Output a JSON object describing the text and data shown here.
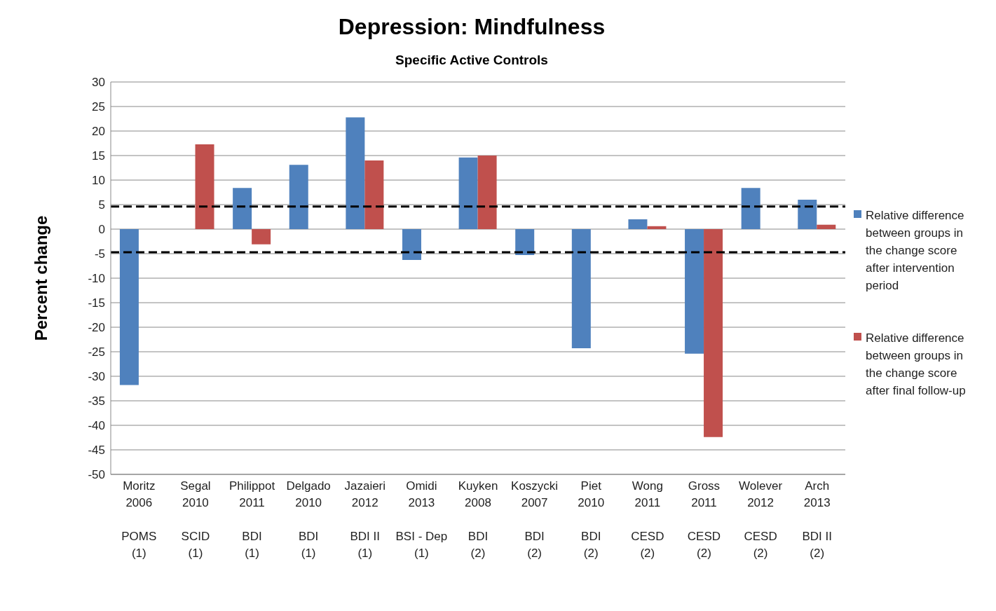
{
  "chart_data": {
    "type": "bar",
    "title": "Depression: Mindfulness",
    "subtitle": "Specific Active Controls",
    "ylabel": "Percent change",
    "categories": [
      "Moritz\n2006\n\nPOMS\n(1)",
      "Segal\n2010\n\nSCID\n(1)",
      "Philippot\n2011\n\nBDI\n(1)",
      "Delgado\n2010\n\nBDI\n(1)",
      "Jazaieri\n2012\n\nBDI II\n(1)",
      "Omidi\n2013\n\nBSI - Dep\n(1)",
      "Kuyken\n2008\n\nBDI\n(2)",
      "Koszycki\n2007\n\nBDI\n(2)",
      "Piet\n2010\n\nBDI\n(2)",
      "Wong\n2011\n\nCESD\n(2)",
      "Gross\n2011\n\nCESD\n(2)",
      "Wolever\n2012\n\nCESD\n(2)",
      "Arch\n2013\n\nBDI II\n(2)"
    ],
    "series": [
      {
        "name": "Relative difference between groups in the change score after intervention period",
        "color": "#4f81bd",
        "values": [
          -31.8,
          null,
          8.4,
          13.1,
          22.8,
          -6.3,
          14.6,
          -5.3,
          -24.3,
          2.0,
          -25.4,
          8.4,
          6.0
        ]
      },
      {
        "name": "Relative difference between groups in the change score after final follow-up",
        "color": "#c0504d",
        "values": [
          null,
          17.3,
          -3.1,
          null,
          14,
          null,
          15,
          null,
          null,
          0.6,
          -42.4,
          null,
          0.9
        ]
      }
    ],
    "ylim": [
      -50,
      30
    ],
    "yticks": [
      -50,
      -45,
      -40,
      -35,
      -30,
      -25,
      -20,
      -15,
      -10,
      -5,
      0,
      5,
      10,
      15,
      20,
      25,
      30
    ],
    "grid": "y",
    "legend": "right",
    "ref_lines": [
      {
        "axis": "y",
        "value": 4.6,
        "line_style": "dashed",
        "color": "#000000"
      },
      {
        "axis": "y",
        "value": -4.7,
        "line_style": "dashed",
        "color": "#000000"
      }
    ]
  }
}
